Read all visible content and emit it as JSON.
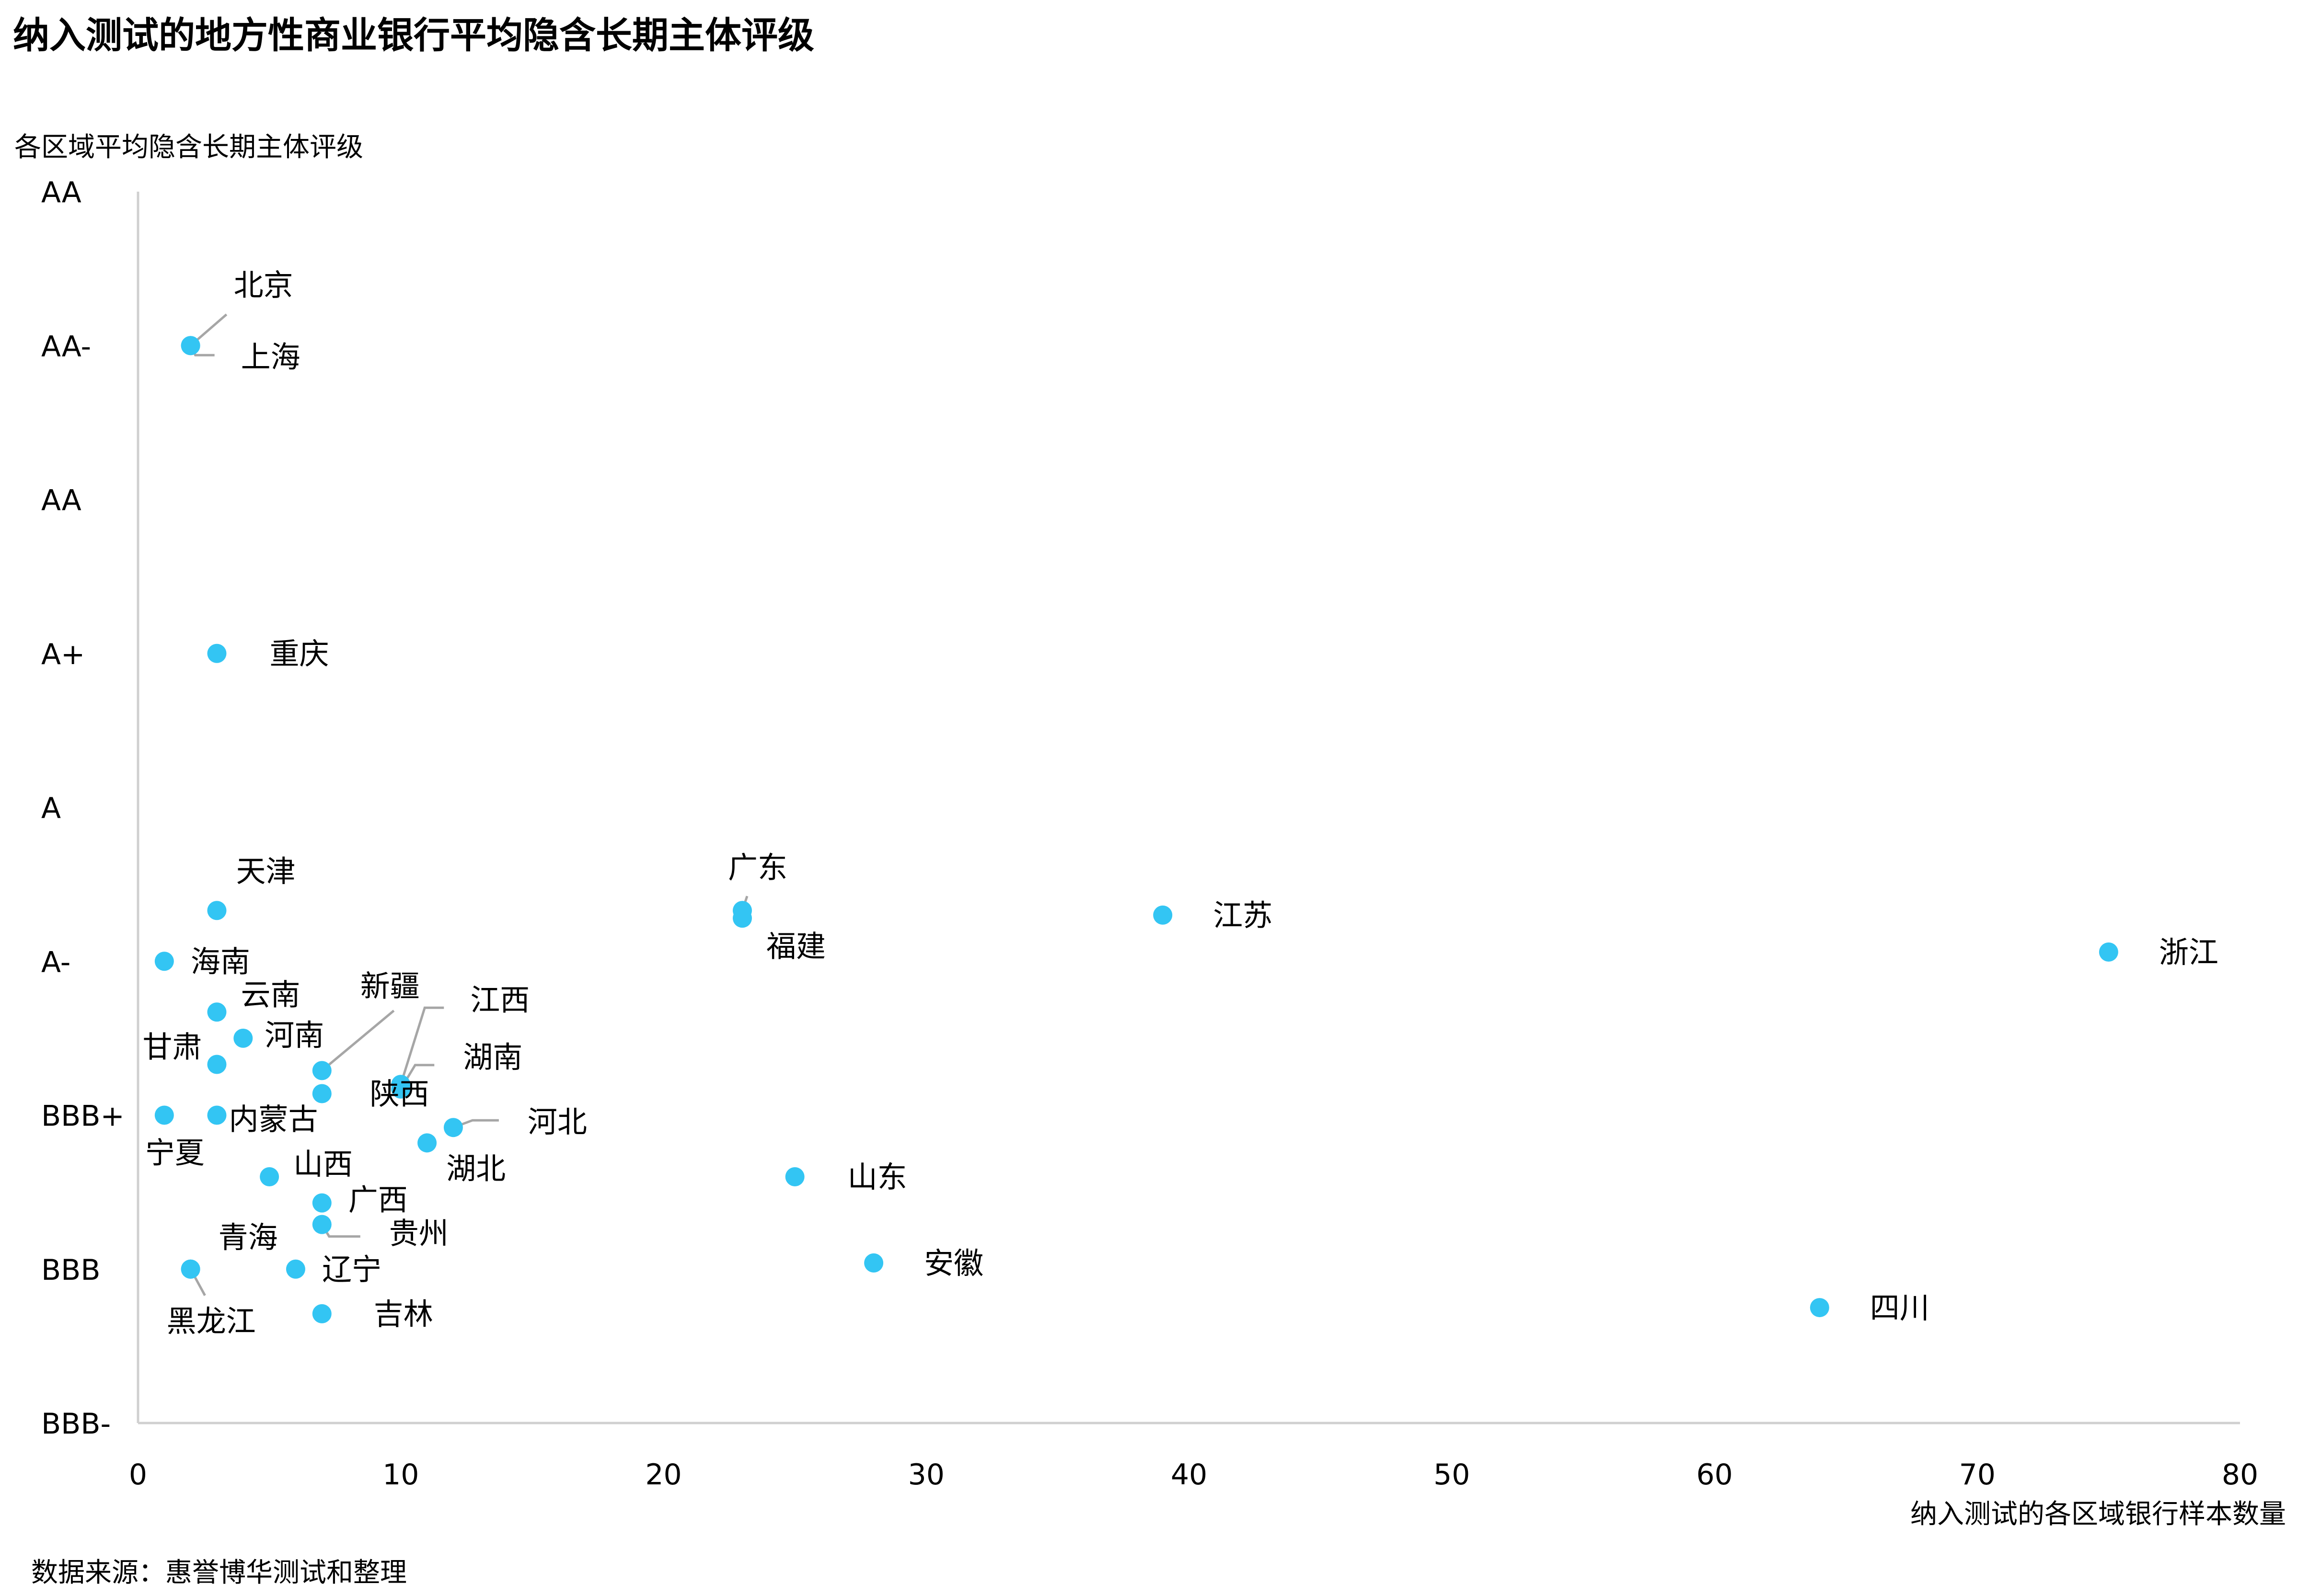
{
  "title": "纳入测试的地方性商业银行平均隐含长期主体评级",
  "source": "数据来源：惠誉博华测试和整理",
  "chart_data": {
    "type": "scatter",
    "ylabel": "各区域平均隐含长期主体评级",
    "xlabel": "纳入测试的各区域银行样本数量",
    "xlim": [
      0,
      80
    ],
    "xticks": [
      0,
      10,
      20,
      30,
      40,
      50,
      60,
      70,
      80
    ],
    "ylim": [
      "BBB-",
      "AA"
    ],
    "yticks": [
      "BBB-",
      "BBB",
      "BBB+",
      "A-",
      "A",
      "A+",
      "AA",
      "AA-",
      "AA"
    ],
    "grid": false,
    "marker_color": "#33c5f3",
    "leader_color": "#a6a6a6",
    "points": [
      {
        "label": "北京",
        "x": 2,
        "y": 7.0
      },
      {
        "label": "上海",
        "x": 2,
        "y": 7.0
      },
      {
        "label": "重庆",
        "x": 3,
        "y": 5.0
      },
      {
        "label": "天津",
        "x": 3,
        "y": 3.33
      },
      {
        "label": "广东",
        "x": 23,
        "y": 3.33
      },
      {
        "label": "福建",
        "x": 23,
        "y": 3.28
      },
      {
        "label": "江苏",
        "x": 39,
        "y": 3.3
      },
      {
        "label": "浙江",
        "x": 75,
        "y": 3.06
      },
      {
        "label": "海南",
        "x": 1,
        "y": 3.0
      },
      {
        "label": "云南",
        "x": 3,
        "y": 2.67
      },
      {
        "label": "河南",
        "x": 4,
        "y": 2.5
      },
      {
        "label": "甘肃",
        "x": 3,
        "y": 2.33
      },
      {
        "label": "新疆",
        "x": 7,
        "y": 2.29
      },
      {
        "label": "江西",
        "x": 10,
        "y": 2.2
      },
      {
        "label": "湖南",
        "x": 10,
        "y": 2.17
      },
      {
        "label": "陕西",
        "x": 7,
        "y": 2.14
      },
      {
        "label": "宁夏",
        "x": 1,
        "y": 2.0
      },
      {
        "label": "内蒙古",
        "x": 3,
        "y": 2.0
      },
      {
        "label": "河北",
        "x": 12,
        "y": 1.92
      },
      {
        "label": "湖北",
        "x": 11,
        "y": 1.82
      },
      {
        "label": "山西",
        "x": 5,
        "y": 1.6
      },
      {
        "label": "山东",
        "x": 25,
        "y": 1.6
      },
      {
        "label": "广西",
        "x": 7,
        "y": 1.43
      },
      {
        "label": "贵州",
        "x": 7,
        "y": 1.29
      },
      {
        "label": "安徽",
        "x": 28,
        "y": 1.04
      },
      {
        "label": "青海",
        "x": 2,
        "y": 1.0
      },
      {
        "label": "黑龙江",
        "x": 2,
        "y": 1.0
      },
      {
        "label": "辽宁",
        "x": 6,
        "y": 1.0
      },
      {
        "label": "吉林",
        "x": 7,
        "y": 0.71
      },
      {
        "label": "四川",
        "x": 64,
        "y": 0.75
      }
    ]
  }
}
